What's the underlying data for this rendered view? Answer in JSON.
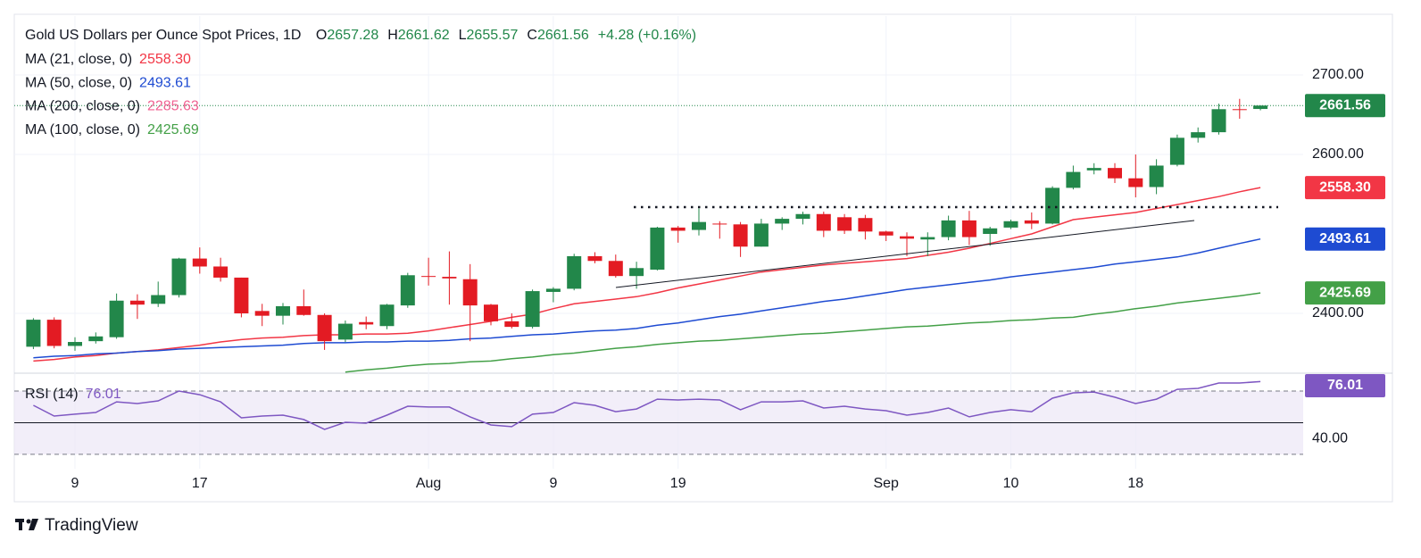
{
  "chart_data": {
    "type": "candlestick",
    "title": "Gold US Dollars per Ounce Spot Prices, 1D",
    "ohlc_header": [
      {
        "label": "O",
        "value": 2657.28
      },
      {
        "label": "H",
        "value": 2661.62
      },
      {
        "label": "L",
        "value": 2655.57
      },
      {
        "label": "C",
        "value": 2661.56
      }
    ],
    "change": "+4.28 (+0.16%)",
    "up_color": "#22874a",
    "down_color": "#e31b23",
    "categories": [
      null,
      null,
      "9",
      null,
      null,
      null,
      null,
      null,
      "17",
      null,
      null,
      null,
      null,
      null,
      null,
      null,
      null,
      null,
      null,
      "Aug",
      null,
      null,
      null,
      null,
      null,
      "9",
      null,
      null,
      null,
      null,
      null,
      "19",
      null,
      null,
      null,
      null,
      null,
      null,
      null,
      null,
      null,
      "Sep",
      null,
      null,
      null,
      null,
      null,
      "10",
      null,
      null,
      null,
      null,
      null,
      "18",
      null,
      null,
      null,
      null,
      null,
      null
    ],
    "open": [
      2358,
      2392,
      2359,
      2365,
      2370,
      2416,
      2412,
      2423,
      2469,
      2459,
      2445,
      2403,
      2397,
      2409,
      2398,
      2367,
      2389,
      2384,
      2410,
      2447,
      2446,
      2443,
      2411,
      2390,
      2383,
      2427,
      2431,
      2472,
      2466,
      2447,
      2455,
      2508,
      2505,
      2513,
      2512,
      2484,
      2513,
      2519,
      2525,
      2521,
      2520,
      2503,
      2497,
      2493,
      2496,
      2517,
      2500,
      2508,
      2517,
      2513,
      2558,
      2580,
      2583,
      2570,
      2559,
      2587,
      2621,
      2628,
      2657,
      2657.28
    ],
    "high": [
      2394,
      2395,
      2370,
      2376,
      2425,
      2424,
      2440,
      2470,
      2483,
      2470,
      2445,
      2412,
      2413,
      2430,
      2400,
      2391,
      2396,
      2412,
      2451,
      2470,
      2478,
      2462,
      2412,
      2400,
      2430,
      2433,
      2475,
      2477,
      2474,
      2465,
      2509,
      2510,
      2532,
      2516,
      2515,
      2519,
      2521,
      2528,
      2528,
      2525,
      2524,
      2504,
      2502,
      2502,
      2523,
      2529,
      2509,
      2518,
      2527,
      2560,
      2586,
      2589,
      2589,
      2600,
      2594,
      2625,
      2634,
      2664,
      2670,
      2661.62
    ],
    "low": [
      2355,
      2356,
      2353,
      2362,
      2368,
      2393,
      2408,
      2420,
      2450,
      2440,
      2395,
      2384,
      2386,
      2397,
      2354,
      2364,
      2380,
      2380,
      2407,
      2435,
      2411,
      2365,
      2385,
      2381,
      2381,
      2414,
      2429,
      2463,
      2445,
      2431,
      2454,
      2489,
      2498,
      2494,
      2471,
      2484,
      2505,
      2512,
      2496,
      2500,
      2493,
      2491,
      2472,
      2472,
      2492,
      2486,
      2485,
      2506,
      2506,
      2512,
      2556,
      2575,
      2564,
      2546,
      2550,
      2585,
      2615,
      2625,
      2645,
      2655.57
    ],
    "close": [
      2392,
      2359,
      2364,
      2371,
      2416,
      2411,
      2423,
      2469,
      2459,
      2445,
      2400,
      2397,
      2409,
      2398,
      2365,
      2387,
      2386,
      2411,
      2448,
      2446,
      2444,
      2410,
      2390,
      2383,
      2428,
      2431,
      2472,
      2466,
      2447,
      2457,
      2508,
      2504,
      2515,
      2512,
      2484,
      2513,
      2519,
      2525,
      2504,
      2504,
      2503,
      2498,
      2494,
      2496,
      2517,
      2496,
      2507,
      2516,
      2513,
      2558,
      2578,
      2583,
      2570,
      2559,
      2586,
      2621,
      2628,
      2657,
      2656,
      2661.56
    ],
    "series": [
      {
        "name": "MA (21, close, 0)",
        "color": "#f23645",
        "last_value": 2558.3,
        "value_label": "2558.30",
        "values": [
          2340,
          2342,
          2345,
          2347,
          2350,
          2352,
          2354,
          2357,
          2360,
          2364,
          2367,
          2369,
          2370,
          2372,
          2373,
          2373,
          2374,
          2374,
          2375,
          2378,
          2382,
          2386,
          2390,
          2395,
          2399,
          2406,
          2412,
          2415,
          2418,
          2421,
          2426,
          2432,
          2437,
          2442,
          2447,
          2452,
          2455,
          2458,
          2461,
          2463,
          2465,
          2467,
          2469,
          2473,
          2477,
          2482,
          2488,
          2494,
          2500,
          2509,
          2518,
          2521,
          2524,
          2527,
          2532,
          2537,
          2542,
          2547,
          2553,
          2558.3
        ]
      },
      {
        "name": "MA (50, close, 0)",
        "color": "#1e4bd2",
        "last_value": 2493.61,
        "value_label": "2493.61",
        "values": [
          2344,
          2346,
          2347,
          2349,
          2350,
          2352,
          2353,
          2355,
          2356,
          2357,
          2358,
          2359,
          2360,
          2362,
          2363,
          2363,
          2364,
          2364,
          2365,
          2365,
          2366,
          2368,
          2369,
          2371,
          2373,
          2374,
          2376,
          2378,
          2379,
          2381,
          2385,
          2388,
          2392,
          2396,
          2399,
          2403,
          2407,
          2411,
          2415,
          2418,
          2422,
          2426,
          2430,
          2433,
          2436,
          2439,
          2442,
          2446,
          2449,
          2452,
          2455,
          2458,
          2462,
          2465,
          2468,
          2471,
          2476,
          2482,
          2488,
          2493.61
        ]
      },
      {
        "name": "MA (200, close, 0)",
        "color": "#f06292",
        "last_value": 2285.63,
        "value_label": "2285.63"
      },
      {
        "name": "MA (100, close, 0)",
        "color": "#43a047",
        "last_value": 2425.69,
        "value_label": "2425.69",
        "values": [
          null,
          null,
          null,
          null,
          null,
          null,
          null,
          null,
          null,
          null,
          null,
          null,
          null,
          null,
          null,
          2326,
          2329,
          2331,
          2334,
          2336,
          2337,
          2339,
          2340,
          2343,
          2345,
          2348,
          2350,
          2353,
          2356,
          2358,
          2361,
          2363,
          2365,
          2366,
          2368,
          2370,
          2372,
          2374,
          2375,
          2377,
          2379,
          2381,
          2383,
          2384,
          2386,
          2388,
          2389,
          2391,
          2392,
          2394,
          2395,
          2399,
          2402,
          2406,
          2409,
          2413,
          2416,
          2419,
          2422,
          2425.69
        ]
      }
    ],
    "ylim": [
      2324.7,
      2774.2
    ],
    "yticks": [
      {
        "value": 2700,
        "label": "2700.00"
      },
      {
        "value": 2600,
        "label": "2600.00"
      },
      {
        "value": 2400,
        "label": "2400.00"
      }
    ],
    "grid": true,
    "rsi": {
      "name": "RSI (14)",
      "color": "#7e57c2",
      "values": [
        61.0,
        54.2,
        55.4,
        56.5,
        63.2,
        62.1,
        63.8,
        70.0,
        67.7,
        63.2,
        53.1,
        54.2,
        54.8,
        52.0,
        45.8,
        50.3,
        49.7,
        54.8,
        60.4,
        59.9,
        59.9,
        53.7,
        48.6,
        47.5,
        55.4,
        56.5,
        62.7,
        61.0,
        57.0,
        58.7,
        64.9,
        64.4,
        64.9,
        64.4,
        58.2,
        63.2,
        63.2,
        63.8,
        59.3,
        60.4,
        58.7,
        57.6,
        54.8,
        56.5,
        59.3,
        53.7,
        56.5,
        58.2,
        57.0,
        65.5,
        68.9,
        69.4,
        66.1,
        62.1,
        64.9,
        71.1,
        71.7,
        75.1,
        75.1,
        76.01
      ],
      "ylim": [
        29.4,
        81.3
      ],
      "yticks": [
        {
          "value": 40,
          "label": "40.00"
        }
      ],
      "band": [
        30,
        70
      ],
      "midline": 50
    }
  },
  "footer": {
    "brand": "TradingView"
  }
}
